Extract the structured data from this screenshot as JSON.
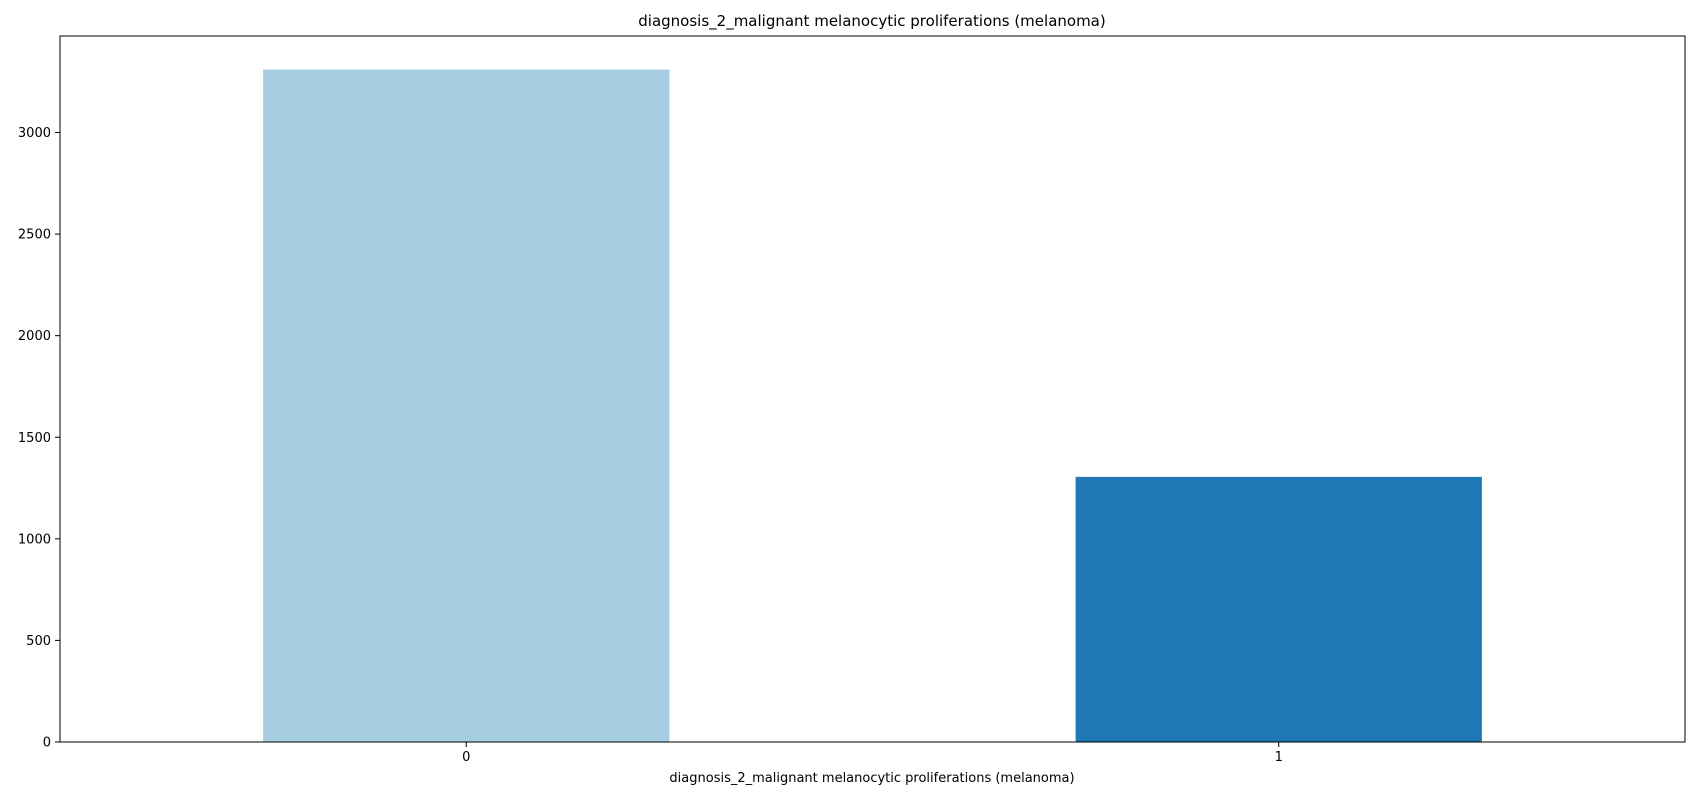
{
  "chart_data": {
    "type": "bar",
    "title": "diagnosis_2_malignant melanocytic proliferations (melanoma)",
    "xlabel": "diagnosis_2_malignant melanocytic proliferations (melanoma)",
    "ylabel": "",
    "categories": [
      "0",
      "1"
    ],
    "values": [
      3310,
      1305
    ],
    "colors": [
      "#a6cee3",
      "#1f78b4"
    ],
    "ylim": [
      0,
      3475
    ],
    "yticks": [
      0,
      500,
      1000,
      1500,
      2000,
      2500,
      3000
    ],
    "grid": false,
    "legend": "none"
  }
}
